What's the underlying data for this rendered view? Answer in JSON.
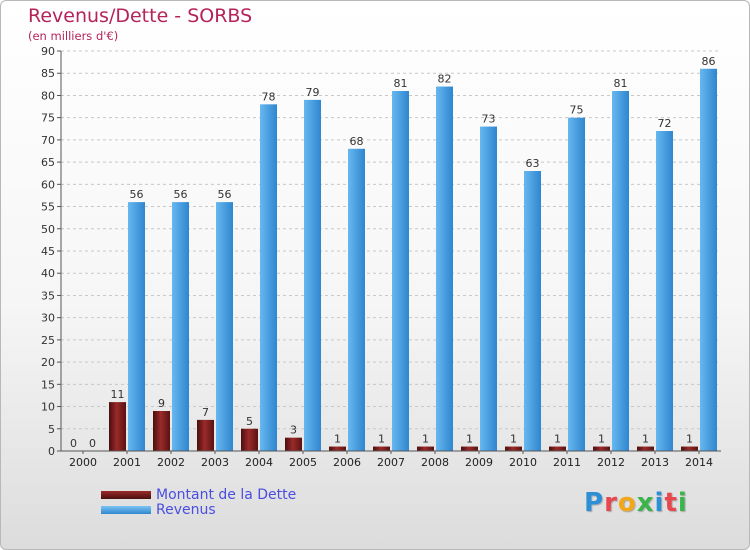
{
  "chart_data": {
    "type": "bar",
    "title": "Revenus/Dette - SORBS",
    "subtitle": "(en milliers d'€)",
    "categories": [
      "2000",
      "2001",
      "2002",
      "2003",
      "2004",
      "2005",
      "2006",
      "2007",
      "2008",
      "2009",
      "2010",
      "2011",
      "2012",
      "2013",
      "2014"
    ],
    "series": [
      {
        "name": "Montant de la Dette",
        "color": "#7a1c1c",
        "values": [
          0,
          11,
          9,
          7,
          5,
          3,
          1,
          1,
          1,
          1,
          1,
          1,
          1,
          1,
          1
        ]
      },
      {
        "name": "Revenus",
        "color": "#4aa3e4",
        "values": [
          0,
          56,
          56,
          56,
          78,
          79,
          68,
          81,
          82,
          73,
          63,
          75,
          81,
          72,
          86
        ]
      }
    ],
    "ylim": [
      0,
      90
    ],
    "yticks": [
      0,
      5,
      10,
      15,
      20,
      25,
      30,
      35,
      40,
      45,
      50,
      55,
      60,
      65,
      70,
      75,
      80,
      85,
      90
    ],
    "grid": "horizontal dashed",
    "legend_position": "bottom-left"
  },
  "branding": {
    "logo_text": "Proxiti",
    "logo_colors": [
      "#2d8fd6",
      "#e8484d",
      "#f2a61a",
      "#3ab54a",
      "#2d8fd6",
      "#e8484d",
      "#3ab54a"
    ]
  }
}
